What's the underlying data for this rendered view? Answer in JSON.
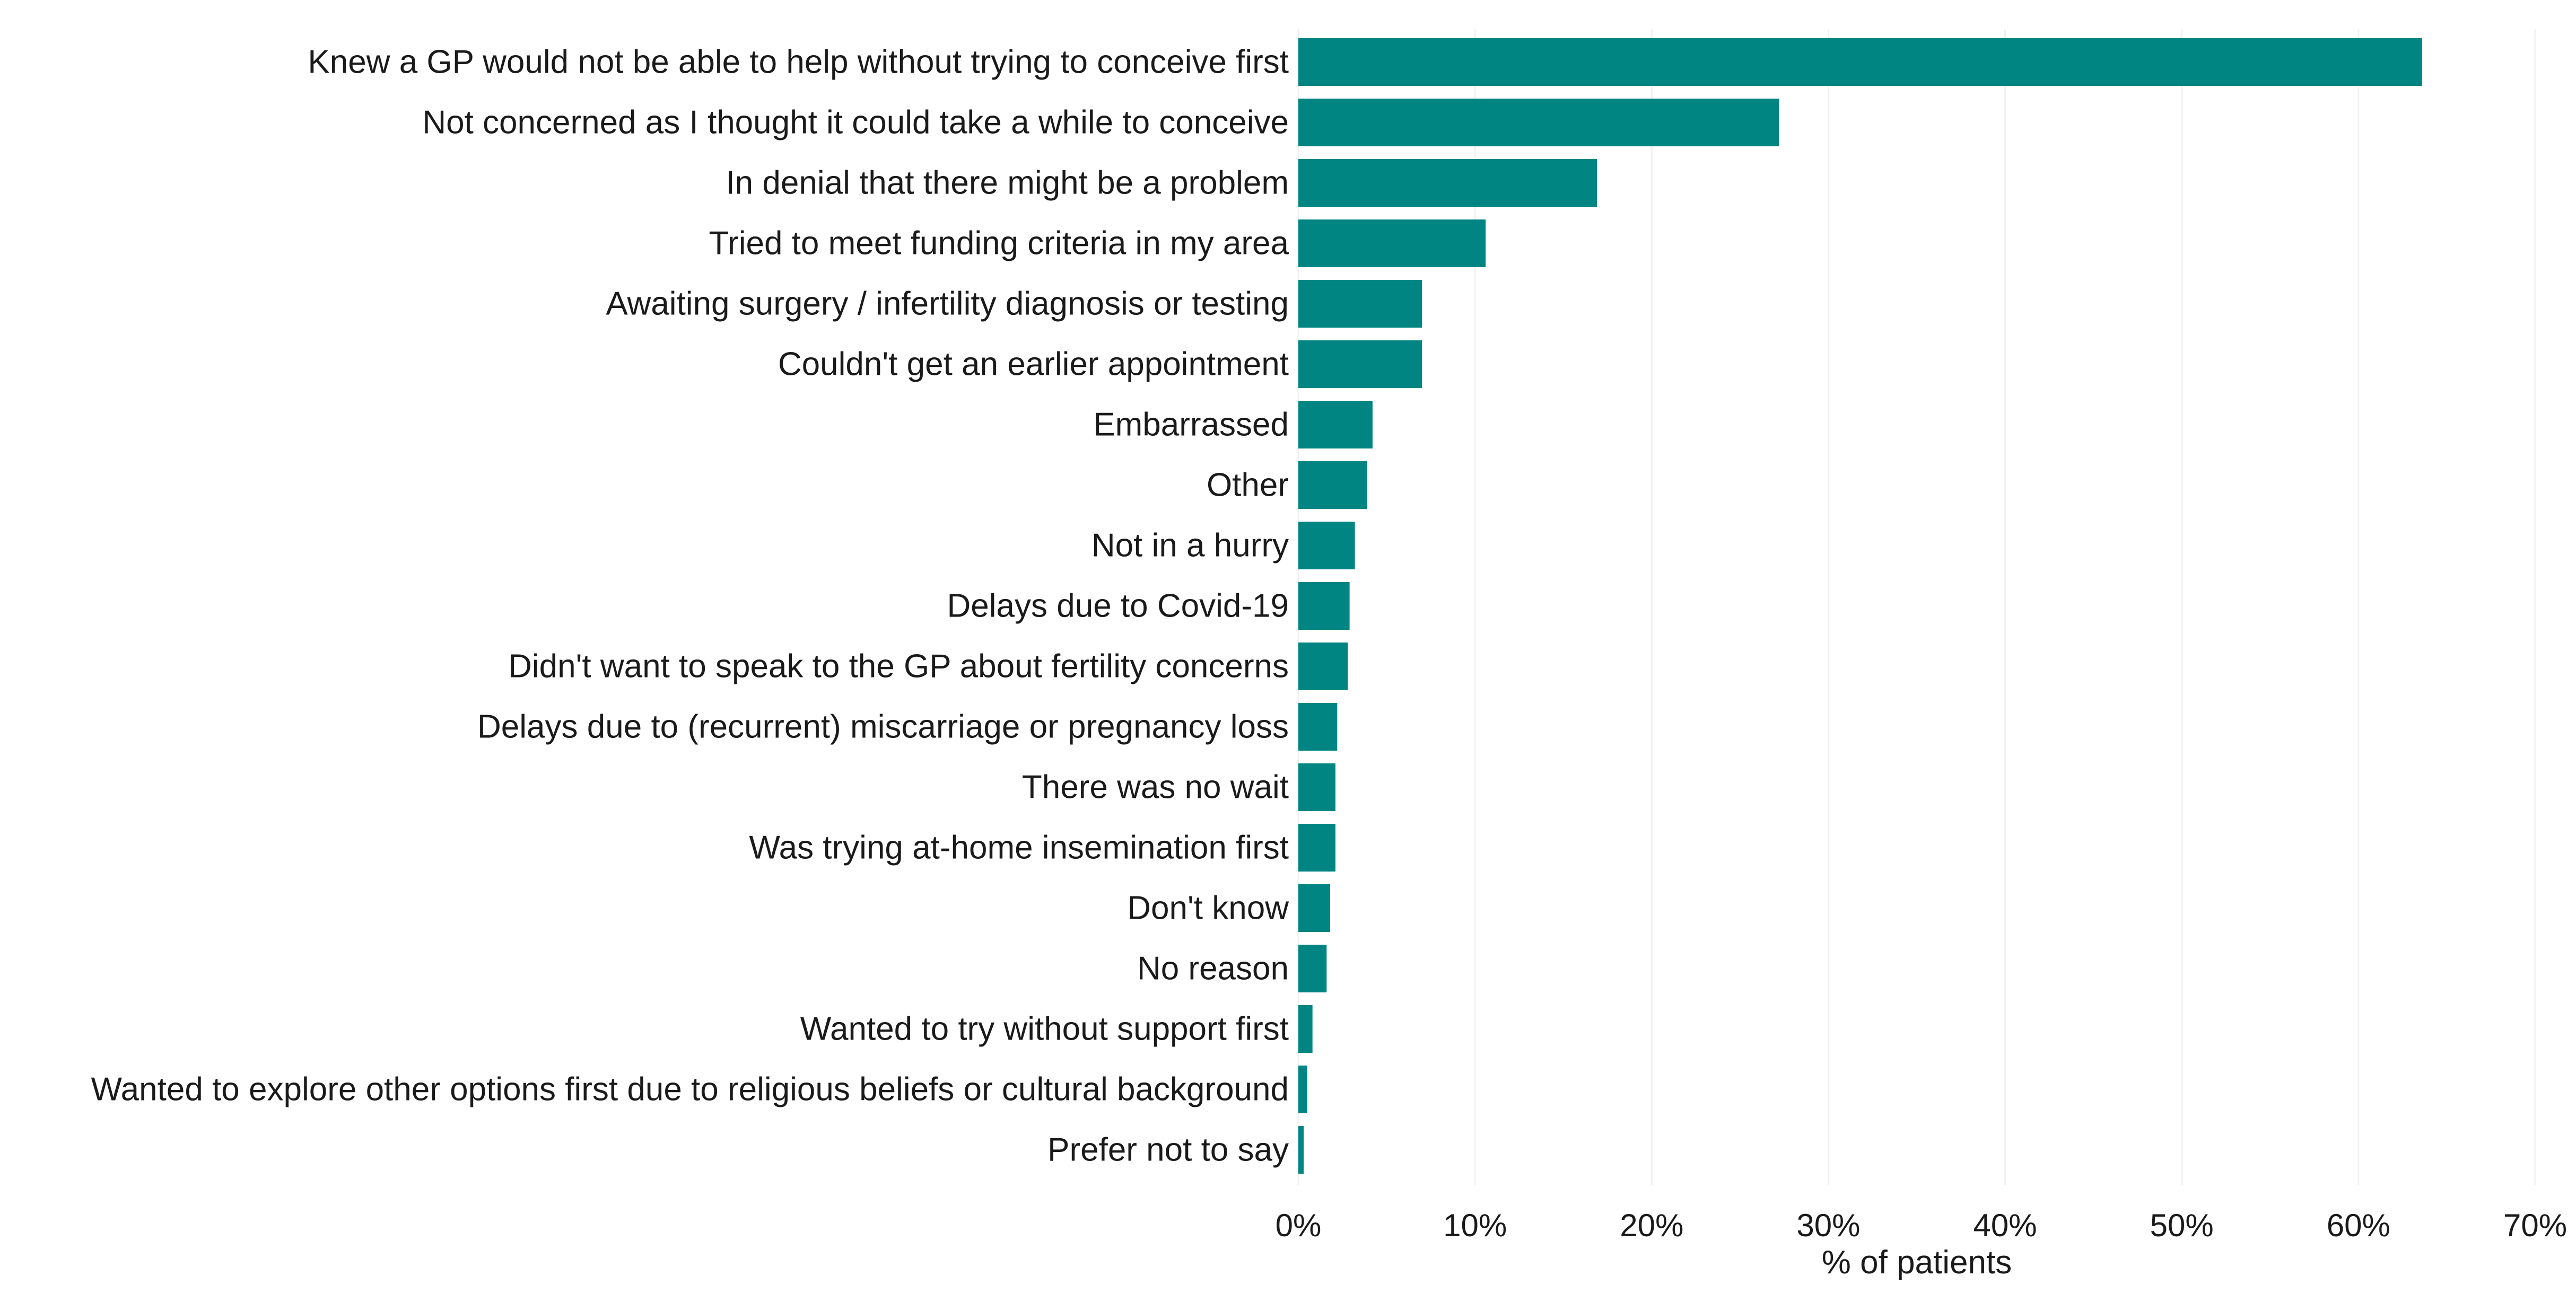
{
  "chart_data": {
    "type": "bar",
    "orientation": "horizontal",
    "title": "",
    "xlabel": "% of patients",
    "ylabel": "",
    "xlim": [
      0,
      70
    ],
    "x_ticks": [
      0,
      10,
      20,
      30,
      40,
      50,
      60,
      70
    ],
    "x_tick_labels": [
      "0%",
      "10%",
      "20%",
      "30%",
      "40%",
      "50%",
      "60%",
      "70%"
    ],
    "grid": "vertical",
    "legend": "none",
    "bar_color": "#008582",
    "categories": [
      "Knew a GP would not be able to help without trying to conceive first",
      "Not concerned as I thought it could take a while to conceive",
      "In denial that there might be a problem",
      "Tried to meet funding criteria in my area",
      "Awaiting surgery / infertility diagnosis or testing",
      "Couldn't get an earlier appointment",
      "Embarrassed",
      "Other",
      "Not in a hurry",
      "Delays due to Covid-19",
      "Didn't want to speak to the GP about fertility concerns",
      "Delays due to (recurrent) miscarriage or pregnancy loss",
      "There was no wait",
      "Was trying at-home insemination first",
      "Don't know",
      "No reason",
      "Wanted to try without support first",
      "Wanted to explore other options first due to religious beliefs or cultural background",
      "Prefer not to say"
    ],
    "values": [
      63.6,
      27.2,
      16.9,
      10.6,
      7.0,
      7.0,
      4.2,
      3.9,
      3.2,
      2.9,
      2.8,
      2.2,
      2.1,
      2.1,
      1.8,
      1.6,
      0.8,
      0.5,
      0.3
    ]
  }
}
